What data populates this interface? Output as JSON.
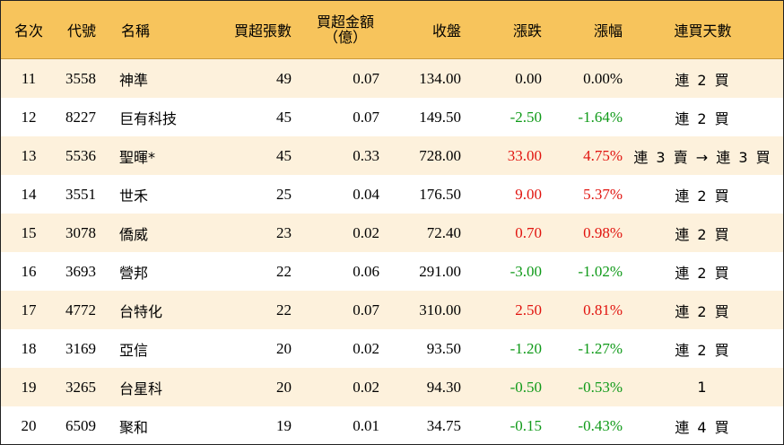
{
  "header": {
    "rank": "名次",
    "code": "代號",
    "name": "名稱",
    "shares": "買超張數",
    "amount_line1": "買超金額",
    "amount_line2": "（億）",
    "close": "收盤",
    "change": "漲跌",
    "pct": "漲幅",
    "streak": "連買天數"
  },
  "colors": {
    "header_bg": "#f7c45c",
    "alt_row_bg": "#fdf1dc",
    "up": "#e1140f",
    "down": "#109a19"
  },
  "rows": [
    {
      "rank": "11",
      "code": "3558",
      "name": "神準",
      "shares": "49",
      "amount": "0.07",
      "close": "134.00",
      "change": "0.00",
      "pct": "0.00%",
      "dir": "flat",
      "streak": "連 2 買"
    },
    {
      "rank": "12",
      "code": "8227",
      "name": "巨有科技",
      "shares": "45",
      "amount": "0.07",
      "close": "149.50",
      "change": "-2.50",
      "pct": "-1.64%",
      "dir": "down",
      "streak": "連 2 買"
    },
    {
      "rank": "13",
      "code": "5536",
      "name": "聖暉*",
      "shares": "45",
      "amount": "0.33",
      "close": "728.00",
      "change": "33.00",
      "pct": "4.75%",
      "dir": "up",
      "streak": "連 3 賣 → 連 3 買"
    },
    {
      "rank": "14",
      "code": "3551",
      "name": "世禾",
      "shares": "25",
      "amount": "0.04",
      "close": "176.50",
      "change": "9.00",
      "pct": "5.37%",
      "dir": "up",
      "streak": "連 2 買"
    },
    {
      "rank": "15",
      "code": "3078",
      "name": "僑威",
      "shares": "23",
      "amount": "0.02",
      "close": "72.40",
      "change": "0.70",
      "pct": "0.98%",
      "dir": "up",
      "streak": "連 2 買"
    },
    {
      "rank": "16",
      "code": "3693",
      "name": "營邦",
      "shares": "22",
      "amount": "0.06",
      "close": "291.00",
      "change": "-3.00",
      "pct": "-1.02%",
      "dir": "down",
      "streak": "連 2 買"
    },
    {
      "rank": "17",
      "code": "4772",
      "name": "台特化",
      "shares": "22",
      "amount": "0.07",
      "close": "310.00",
      "change": "2.50",
      "pct": "0.81%",
      "dir": "up",
      "streak": "連 2 買"
    },
    {
      "rank": "18",
      "code": "3169",
      "name": "亞信",
      "shares": "20",
      "amount": "0.02",
      "close": "93.50",
      "change": "-1.20",
      "pct": "-1.27%",
      "dir": "down",
      "streak": "連 2 買"
    },
    {
      "rank": "19",
      "code": "3265",
      "name": "台星科",
      "shares": "20",
      "amount": "0.02",
      "close": "94.30",
      "change": "-0.50",
      "pct": "-0.53%",
      "dir": "down",
      "streak": "1"
    },
    {
      "rank": "20",
      "code": "6509",
      "name": "聚和",
      "shares": "19",
      "amount": "0.01",
      "close": "34.75",
      "change": "-0.15",
      "pct": "-0.43%",
      "dir": "down",
      "streak": "連 4 買"
    }
  ]
}
